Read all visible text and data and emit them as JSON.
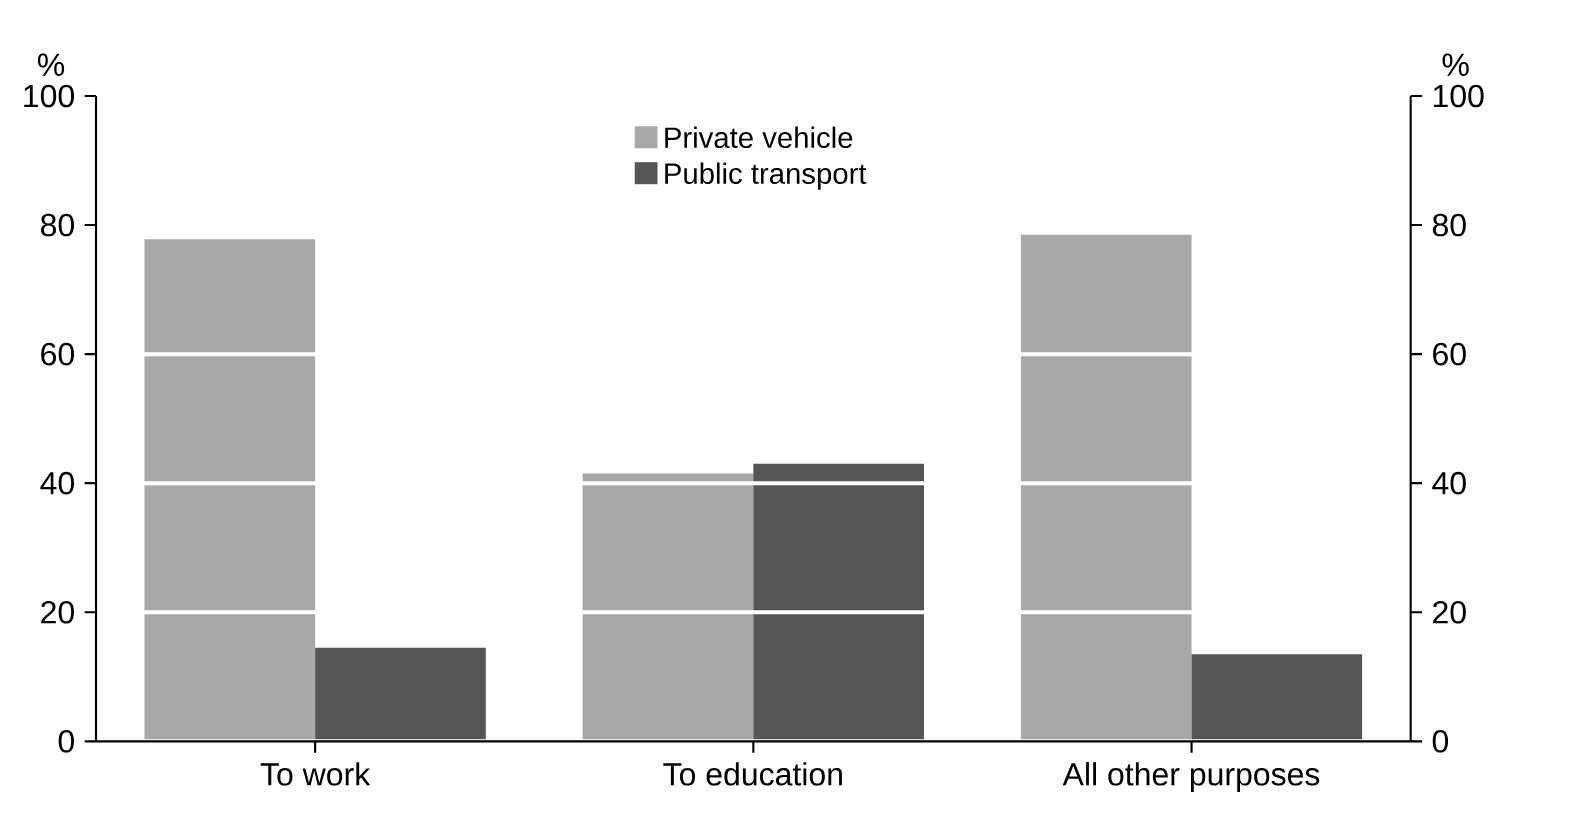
{
  "chart_data": {
    "type": "bar",
    "ylabel": "%",
    "y2label": "%",
    "categories": [
      "To work",
      "To education",
      "All other purposes"
    ],
    "series": [
      {
        "name": "Private vehicle",
        "color": "#a8a8a8",
        "values": [
          77.8,
          41.5,
          78.5
        ]
      },
      {
        "name": "Public transport",
        "color": "#555555",
        "values": [
          14.5,
          43,
          13.5
        ]
      }
    ],
    "ylim": [
      0,
      100
    ],
    "yticks": [
      0,
      20,
      40,
      60,
      80,
      100
    ],
    "y2lim": [
      0,
      100
    ],
    "y2ticks": [
      0,
      20,
      40,
      60,
      80,
      100
    ],
    "grid": "y",
    "legend": "top"
  }
}
